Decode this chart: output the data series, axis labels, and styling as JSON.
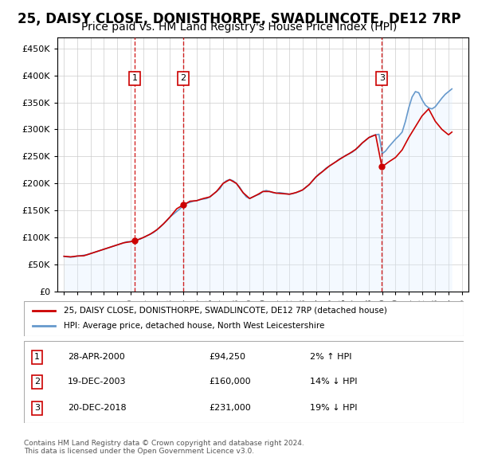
{
  "title": "25, DAISY CLOSE, DONISTHORPE, SWADLINCOTE, DE12 7RP",
  "subtitle": "Price paid vs. HM Land Registry's House Price Index (HPI)",
  "title_fontsize": 12,
  "subtitle_fontsize": 10,
  "xlim": [
    1994.5,
    2025.5
  ],
  "ylim": [
    0,
    470000
  ],
  "yticks": [
    0,
    50000,
    100000,
    150000,
    200000,
    250000,
    300000,
    350000,
    400000,
    450000
  ],
  "ytick_labels": [
    "£0",
    "£50K",
    "£100K",
    "£150K",
    "£200K",
    "£250K",
    "£300K",
    "£350K",
    "£400K",
    "£450K"
  ],
  "xticks": [
    1995,
    1996,
    1997,
    1998,
    1999,
    2000,
    2001,
    2002,
    2003,
    2004,
    2005,
    2006,
    2007,
    2008,
    2009,
    2010,
    2011,
    2012,
    2013,
    2014,
    2015,
    2016,
    2017,
    2018,
    2019,
    2020,
    2021,
    2022,
    2023,
    2024,
    2025
  ],
  "sale_events": [
    {
      "num": 1,
      "year": 2000.32,
      "price": 94250,
      "label": "28-APR-2000",
      "price_str": "£94,250",
      "hpi_rel": "2% ↑ HPI"
    },
    {
      "num": 2,
      "year": 2003.97,
      "price": 160000,
      "label": "19-DEC-2003",
      "price_str": "£160,000",
      "hpi_rel": "14% ↓ HPI"
    },
    {
      "num": 3,
      "year": 2018.97,
      "price": 231000,
      "label": "20-DEC-2018",
      "price_str": "£231,000",
      "hpi_rel": "19% ↓ HPI"
    }
  ],
  "property_line_color": "#cc0000",
  "hpi_line_color": "#6699cc",
  "hpi_fill_color": "#ddeeff",
  "vline_color": "#cc0000",
  "box_color": "#cc0000",
  "legend_label_property": "25, DAISY CLOSE, DONISTHORPE, SWADLINCOTE, DE12 7RP (detached house)",
  "legend_label_hpi": "HPI: Average price, detached house, North West Leicestershire",
  "footnote1": "Contains HM Land Registry data © Crown copyright and database right 2024.",
  "footnote2": "This data is licensed under the Open Government Licence v3.0.",
  "hpi_years": [
    1995.0,
    1995.25,
    1995.5,
    1995.75,
    1996.0,
    1996.25,
    1996.5,
    1996.75,
    1997.0,
    1997.25,
    1997.5,
    1997.75,
    1998.0,
    1998.25,
    1998.5,
    1998.75,
    1999.0,
    1999.25,
    1999.5,
    1999.75,
    2000.0,
    2000.25,
    2000.5,
    2000.75,
    2001.0,
    2001.25,
    2001.5,
    2001.75,
    2002.0,
    2002.25,
    2002.5,
    2002.75,
    2003.0,
    2003.25,
    2003.5,
    2003.75,
    2004.0,
    2004.25,
    2004.5,
    2004.75,
    2005.0,
    2005.25,
    2005.5,
    2005.75,
    2006.0,
    2006.25,
    2006.5,
    2006.75,
    2007.0,
    2007.25,
    2007.5,
    2007.75,
    2008.0,
    2008.25,
    2008.5,
    2008.75,
    2009.0,
    2009.25,
    2009.5,
    2009.75,
    2010.0,
    2010.25,
    2010.5,
    2010.75,
    2011.0,
    2011.25,
    2011.5,
    2011.75,
    2012.0,
    2012.25,
    2012.5,
    2012.75,
    2013.0,
    2013.25,
    2013.5,
    2013.75,
    2014.0,
    2014.25,
    2014.5,
    2014.75,
    2015.0,
    2015.25,
    2015.5,
    2015.75,
    2016.0,
    2016.25,
    2016.5,
    2016.75,
    2017.0,
    2017.25,
    2017.5,
    2017.75,
    2018.0,
    2018.25,
    2018.5,
    2018.75,
    2019.0,
    2019.25,
    2019.5,
    2019.75,
    2020.0,
    2020.25,
    2020.5,
    2020.75,
    2021.0,
    2021.25,
    2021.5,
    2021.75,
    2022.0,
    2022.25,
    2022.5,
    2022.75,
    2023.0,
    2023.25,
    2023.5,
    2023.75,
    2024.0,
    2024.25
  ],
  "hpi_values": [
    65000,
    64000,
    63500,
    64000,
    65500,
    66000,
    67000,
    68000,
    70000,
    72000,
    74000,
    76000,
    78000,
    80000,
    82000,
    84000,
    86000,
    88000,
    90000,
    92000,
    92000,
    93000,
    95000,
    97000,
    100000,
    103000,
    106000,
    109000,
    114000,
    119000,
    125000,
    131000,
    138000,
    143000,
    148000,
    153000,
    160000,
    163000,
    165000,
    167000,
    168000,
    170000,
    171000,
    172000,
    175000,
    180000,
    185000,
    190000,
    200000,
    205000,
    207000,
    205000,
    200000,
    193000,
    183000,
    175000,
    172000,
    175000,
    178000,
    180000,
    185000,
    187000,
    185000,
    183000,
    182000,
    183000,
    182000,
    181000,
    180000,
    181000,
    183000,
    185000,
    188000,
    193000,
    198000,
    205000,
    212000,
    218000,
    222000,
    228000,
    232000,
    236000,
    240000,
    245000,
    248000,
    252000,
    255000,
    258000,
    263000,
    268000,
    275000,
    280000,
    285000,
    288000,
    290000,
    291000,
    255000,
    260000,
    268000,
    275000,
    282000,
    288000,
    295000,
    315000,
    340000,
    360000,
    370000,
    368000,
    355000,
    345000,
    340000,
    338000,
    342000,
    350000,
    358000,
    365000,
    370000,
    375000
  ],
  "property_years": [
    1995.0,
    1995.5,
    1996.0,
    1996.5,
    1997.0,
    1997.5,
    1998.0,
    1998.5,
    1999.0,
    1999.5,
    2000.0,
    2000.32,
    2000.5,
    2001.0,
    2001.5,
    2002.0,
    2002.5,
    2003.0,
    2003.5,
    2003.97,
    2004.0,
    2004.5,
    2005.0,
    2005.5,
    2006.0,
    2006.5,
    2007.0,
    2007.5,
    2008.0,
    2008.5,
    2009.0,
    2009.5,
    2010.0,
    2010.5,
    2011.0,
    2011.5,
    2012.0,
    2012.5,
    2013.0,
    2013.5,
    2014.0,
    2014.5,
    2015.0,
    2015.5,
    2016.0,
    2016.5,
    2017.0,
    2017.5,
    2018.0,
    2018.5,
    2018.97,
    2019.0,
    2019.5,
    2020.0,
    2020.5,
    2021.0,
    2021.5,
    2022.0,
    2022.5,
    2023.0,
    2023.5,
    2024.0,
    2024.25
  ],
  "property_values": [
    65000,
    64000,
    65500,
    66000,
    70000,
    74000,
    78000,
    82000,
    86000,
    90000,
    92000,
    94250,
    95000,
    100000,
    106000,
    114000,
    125000,
    138000,
    153000,
    160000,
    160000,
    167000,
    168000,
    172000,
    175000,
    185000,
    200000,
    207000,
    200000,
    183000,
    172000,
    178000,
    185000,
    185000,
    182000,
    181000,
    180000,
    183000,
    188000,
    198000,
    212000,
    222000,
    232000,
    240000,
    248000,
    255000,
    263000,
    275000,
    285000,
    290000,
    231000,
    231000,
    240000,
    248000,
    262000,
    285000,
    305000,
    325000,
    338000,
    315000,
    300000,
    290000,
    295000
  ]
}
